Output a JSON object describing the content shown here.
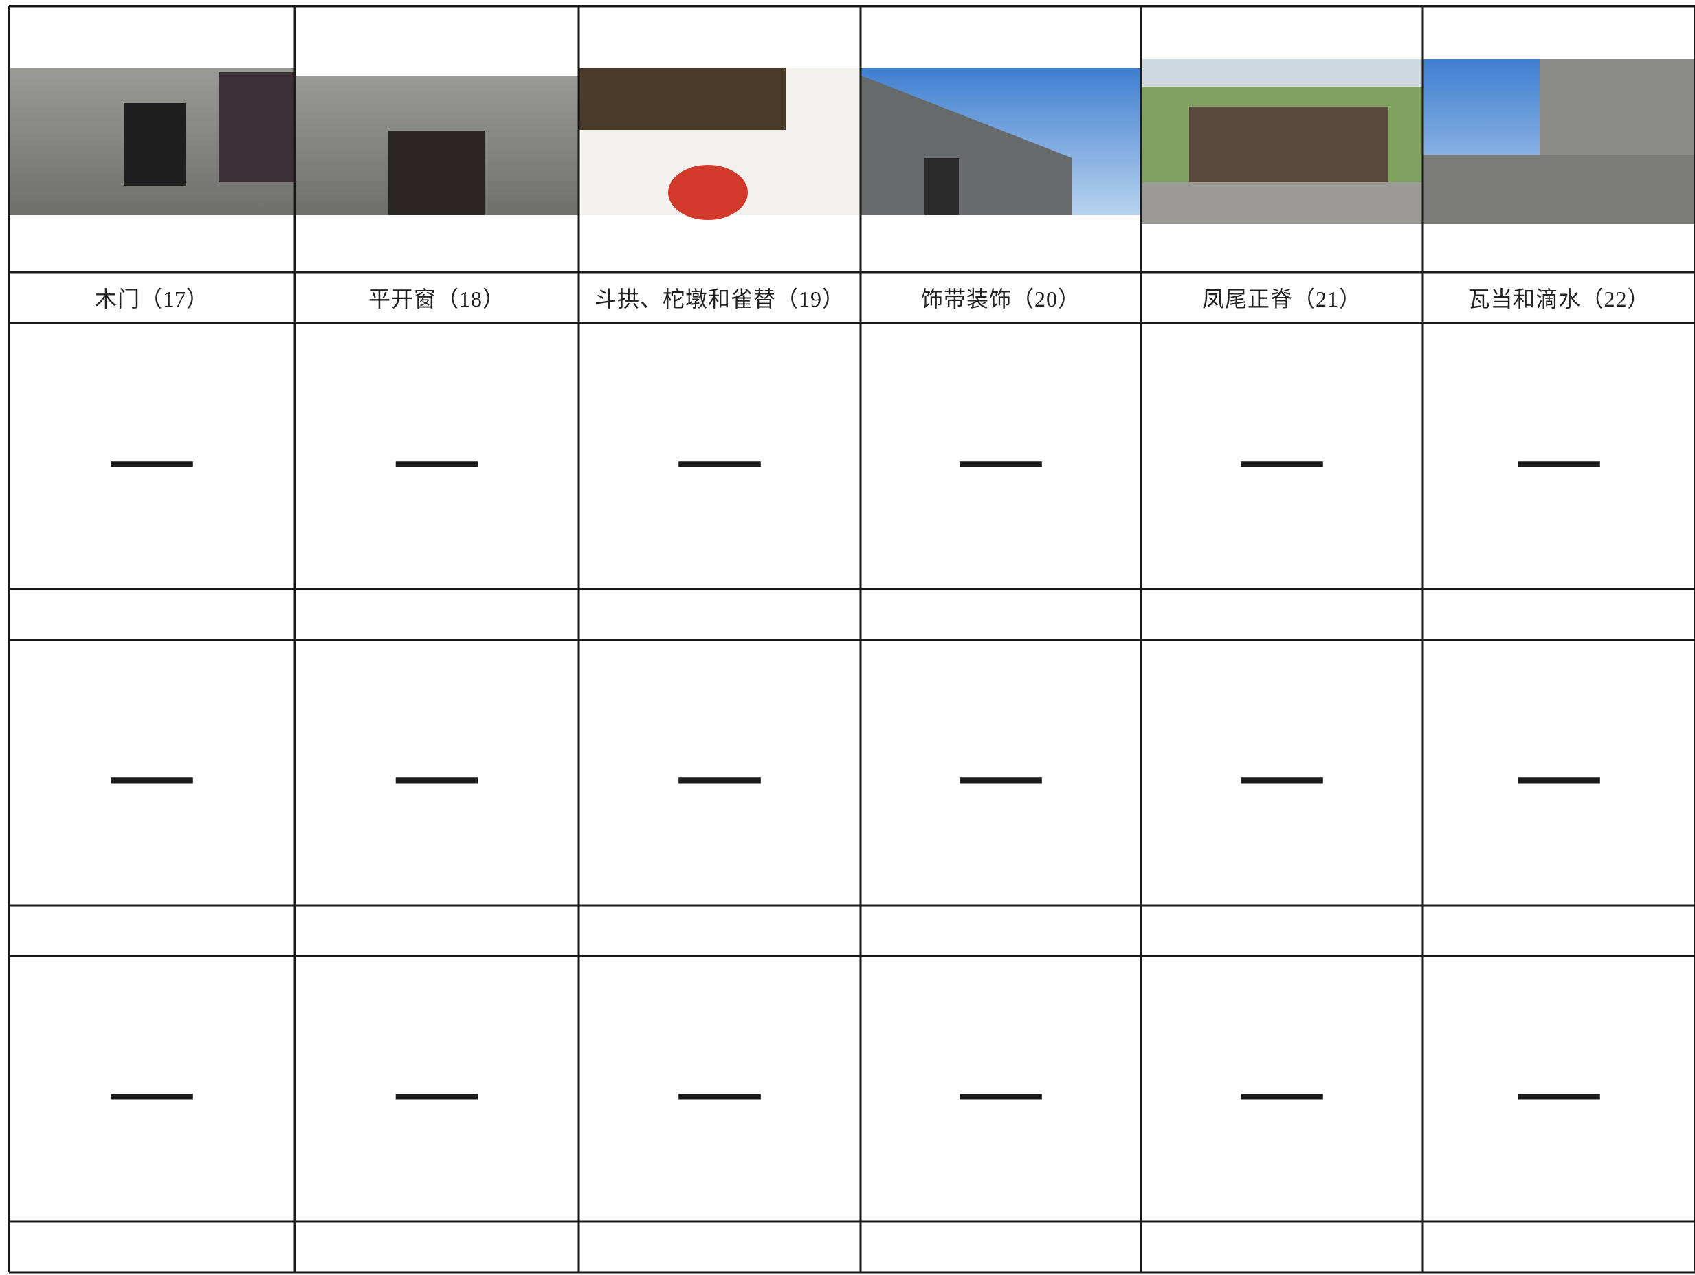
{
  "table": {
    "columns": [
      "木门（17）",
      "平开窗（18）",
      "斗拱、柁墩和雀替（19）",
      "饰带装饰（20）",
      "凤尾正脊（21）",
      "瓦当和滴水（22）"
    ],
    "rows": [
      [
        "—",
        "—",
        "—",
        "—",
        "—",
        "—"
      ],
      [
        "—",
        "—",
        "—",
        "—",
        "—",
        "—"
      ],
      [
        "—",
        "—",
        "—",
        "—",
        "—",
        "—"
      ]
    ]
  }
}
